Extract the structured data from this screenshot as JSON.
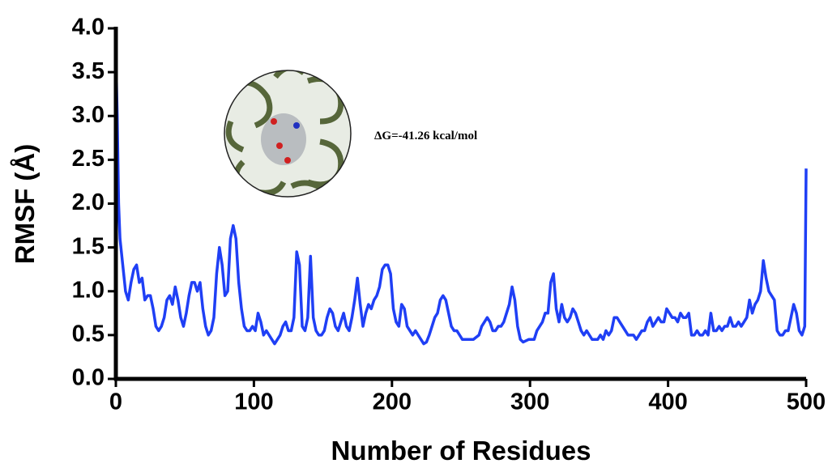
{
  "chart_data": {
    "type": "line",
    "xlabel": "Number of Residues",
    "ylabel": "RMSF (Å)",
    "annotation": "ΔG=-41.26 kcal/mol",
    "color": "#1f3ff5",
    "x": [
      0,
      1,
      2,
      3,
      5,
      7,
      9,
      11,
      13,
      15,
      17,
      19,
      21,
      23,
      25,
      27,
      29,
      31,
      33,
      35,
      37,
      39,
      41,
      43,
      45,
      47,
      49,
      51,
      53,
      55,
      57,
      59,
      61,
      63,
      65,
      67,
      69,
      71,
      73,
      75,
      77,
      79,
      81,
      83,
      85,
      87,
      89,
      91,
      93,
      95,
      97,
      99,
      101,
      103,
      105,
      107,
      109,
      111,
      113,
      115,
      117,
      119,
      121,
      123,
      125,
      127,
      129,
      131,
      133,
      135,
      137,
      139,
      141,
      143,
      145,
      147,
      149,
      151,
      153,
      155,
      157,
      159,
      161,
      163,
      165,
      167,
      169,
      171,
      173,
      175,
      177,
      179,
      181,
      183,
      185,
      187,
      189,
      191,
      193,
      195,
      197,
      199,
      201,
      203,
      205,
      207,
      209,
      211,
      213,
      215,
      217,
      219,
      221,
      223,
      225,
      227,
      229,
      231,
      233,
      235,
      237,
      239,
      241,
      243,
      245,
      247,
      249,
      251,
      255,
      259,
      263,
      265,
      267,
      269,
      271,
      273,
      275,
      277,
      279,
      281,
      283,
      285,
      287,
      289,
      291,
      293,
      295,
      299,
      303,
      305,
      307,
      309,
      311,
      313,
      315,
      317,
      319,
      321,
      323,
      325,
      327,
      329,
      331,
      333,
      335,
      337,
      339,
      341,
      343,
      345,
      349,
      351,
      353,
      355,
      357,
      359,
      361,
      363,
      365,
      367,
      369,
      371,
      375,
      377,
      379,
      381,
      383,
      385,
      387,
      389,
      391,
      393,
      395,
      397,
      399,
      401,
      403,
      405,
      407,
      409,
      411,
      413,
      415,
      417,
      419,
      421,
      423,
      425,
      427,
      429,
      431,
      433,
      435,
      437,
      439,
      441,
      443,
      445,
      447,
      449,
      451,
      453,
      455,
      457,
      459,
      461,
      463,
      465,
      467,
      469,
      471,
      473,
      475,
      477,
      479,
      481,
      483,
      485,
      487,
      489,
      491,
      493,
      495,
      497,
      499,
      500
    ],
    "values": [
      3.7,
      3.0,
      2.0,
      1.6,
      1.3,
      1.0,
      0.9,
      1.1,
      1.25,
      1.3,
      1.1,
      1.15,
      0.9,
      0.95,
      0.95,
      0.8,
      0.6,
      0.55,
      0.6,
      0.7,
      0.9,
      0.95,
      0.85,
      1.05,
      0.9,
      0.7,
      0.6,
      0.75,
      0.95,
      1.1,
      1.1,
      1.0,
      1.1,
      0.8,
      0.6,
      0.5,
      0.55,
      0.7,
      1.2,
      1.5,
      1.3,
      0.95,
      1.0,
      1.6,
      1.75,
      1.6,
      1.1,
      0.8,
      0.6,
      0.55,
      0.55,
      0.6,
      0.55,
      0.75,
      0.65,
      0.5,
      0.55,
      0.5,
      0.45,
      0.4,
      0.45,
      0.5,
      0.6,
      0.65,
      0.55,
      0.55,
      0.7,
      1.45,
      1.3,
      0.6,
      0.55,
      0.7,
      1.4,
      0.7,
      0.55,
      0.5,
      0.5,
      0.55,
      0.7,
      0.8,
      0.75,
      0.6,
      0.55,
      0.65,
      0.75,
      0.6,
      0.55,
      0.7,
      0.9,
      1.15,
      0.85,
      0.6,
      0.75,
      0.85,
      0.8,
      0.9,
      0.95,
      1.05,
      1.25,
      1.3,
      1.3,
      1.2,
      0.8,
      0.65,
      0.6,
      0.85,
      0.8,
      0.6,
      0.55,
      0.5,
      0.55,
      0.5,
      0.45,
      0.4,
      0.42,
      0.5,
      0.6,
      0.7,
      0.75,
      0.9,
      0.95,
      0.9,
      0.75,
      0.6,
      0.55,
      0.55,
      0.5,
      0.45,
      0.45,
      0.45,
      0.5,
      0.6,
      0.65,
      0.7,
      0.65,
      0.55,
      0.55,
      0.6,
      0.6,
      0.65,
      0.75,
      0.85,
      1.05,
      0.9,
      0.6,
      0.45,
      0.42,
      0.45,
      0.45,
      0.55,
      0.6,
      0.65,
      0.75,
      0.75,
      1.1,
      1.2,
      0.8,
      0.65,
      0.85,
      0.7,
      0.65,
      0.7,
      0.8,
      0.75,
      0.65,
      0.55,
      0.5,
      0.55,
      0.5,
      0.45,
      0.45,
      0.5,
      0.45,
      0.55,
      0.5,
      0.55,
      0.7,
      0.7,
      0.65,
      0.6,
      0.55,
      0.5,
      0.5,
      0.45,
      0.5,
      0.55,
      0.55,
      0.65,
      0.7,
      0.6,
      0.65,
      0.7,
      0.65,
      0.65,
      0.8,
      0.75,
      0.7,
      0.7,
      0.65,
      0.75,
      0.7,
      0.7,
      0.75,
      0.5,
      0.5,
      0.55,
      0.5,
      0.5,
      0.55,
      0.5,
      0.75,
      0.55,
      0.55,
      0.6,
      0.55,
      0.6,
      0.6,
      0.7,
      0.6,
      0.6,
      0.65,
      0.6,
      0.65,
      0.7,
      0.9,
      0.75,
      0.85,
      0.9,
      1.0,
      1.35,
      1.15,
      1.0,
      0.95,
      0.9,
      0.55,
      0.5,
      0.5,
      0.55,
      0.55,
      0.7,
      0.85,
      0.75,
      0.55,
      0.5,
      0.6,
      2.4
    ],
    "xlim": [
      0,
      500
    ],
    "xticks": [
      0,
      100,
      200,
      300,
      400,
      500
    ],
    "ylim": [
      0,
      4
    ],
    "yticks": [
      {
        "value": 0,
        "label": "0.0"
      },
      0.5,
      {
        "value": 1,
        "label": "1.0"
      },
      1.5,
      {
        "value": 2,
        "label": "2.0"
      },
      2.5,
      {
        "value": 3,
        "label": "3.0"
      },
      3.5,
      {
        "value": 4,
        "label": "4.0"
      }
    ]
  }
}
